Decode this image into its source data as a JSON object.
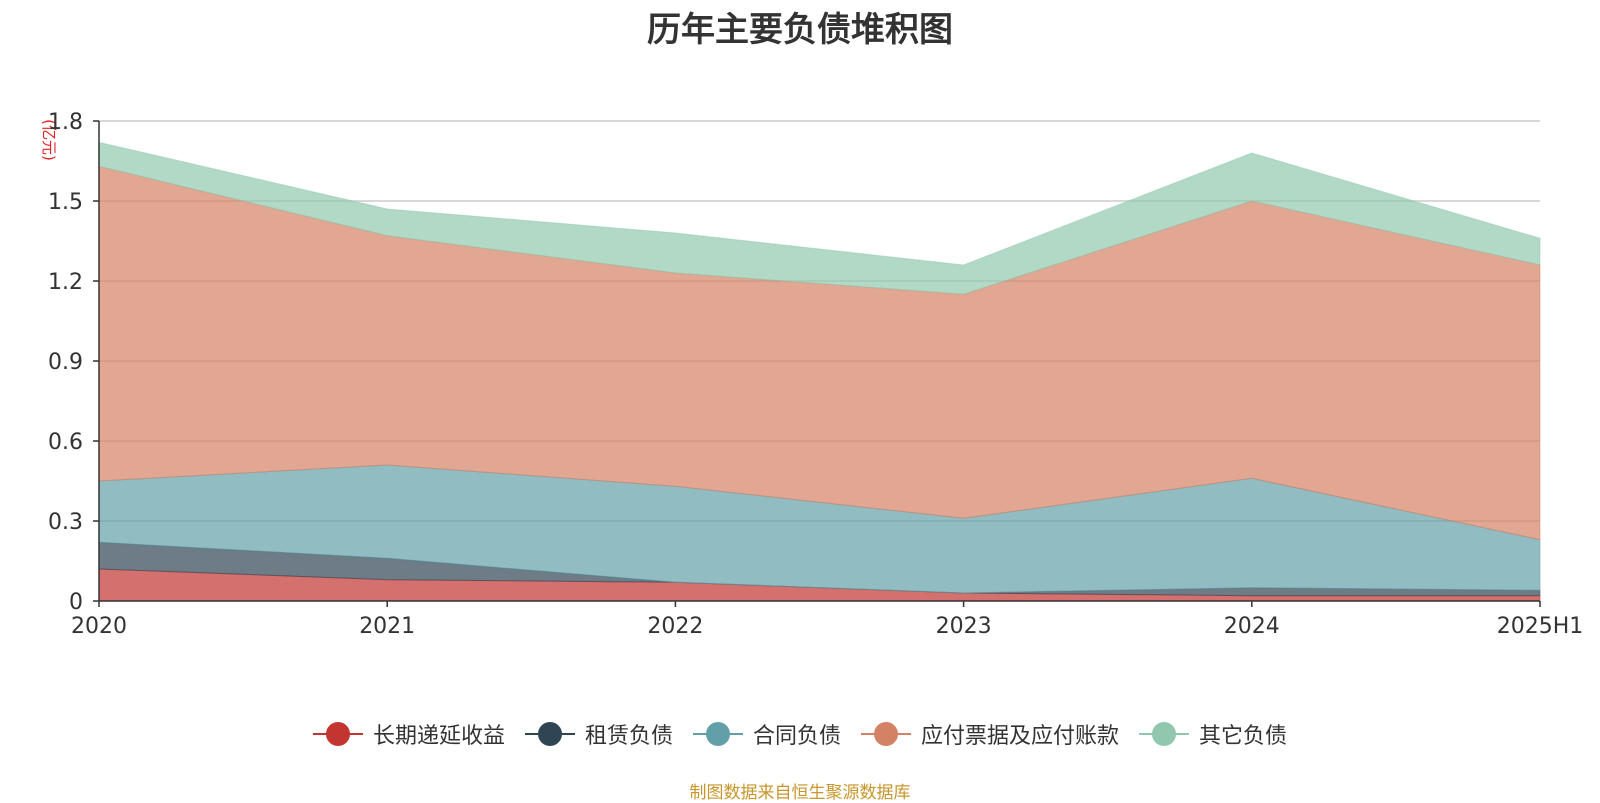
{
  "title": "历年主要负债堆积图",
  "unit_label": "(亿元)",
  "source_note": "制图数据来自恒生聚源数据库",
  "chart_data": {
    "type": "area",
    "stacked": true,
    "categories": [
      "2020",
      "2021",
      "2022",
      "2023",
      "2024",
      "2025H1"
    ],
    "y_ticks": [
      "0",
      "0.3",
      "0.6",
      "0.9",
      "1.2",
      "1.5",
      "1.8"
    ],
    "ylim": [
      0,
      1.8
    ],
    "grid": true,
    "legend_position": "bottom",
    "series": [
      {
        "name": "长期递延收益",
        "color": "#c23531",
        "values": [
          0.12,
          0.08,
          0.07,
          0.03,
          0.02,
          0.02
        ]
      },
      {
        "name": "租赁负债",
        "color": "#2f4554",
        "values": [
          0.1,
          0.08,
          0.0,
          0.0,
          0.03,
          0.02
        ]
      },
      {
        "name": "合同负债",
        "color": "#61a0a8",
        "values": [
          0.23,
          0.35,
          0.36,
          0.28,
          0.41,
          0.19
        ]
      },
      {
        "name": "应付票据及应付账款",
        "color": "#d48265",
        "values": [
          1.18,
          0.86,
          0.8,
          0.84,
          1.04,
          1.03
        ]
      },
      {
        "name": "其它负债",
        "color": "#91c7ae",
        "values": [
          0.09,
          0.1,
          0.15,
          0.11,
          0.18,
          0.1
        ]
      }
    ]
  }
}
